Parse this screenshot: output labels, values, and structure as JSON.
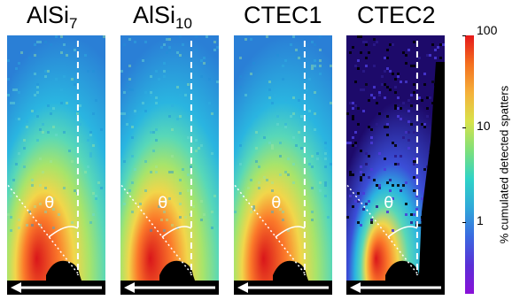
{
  "panels": [
    {
      "label_main": "AlSi",
      "label_sub": "7",
      "angle_label": "θ",
      "sparse": false
    },
    {
      "label_main": "AlSi",
      "label_sub": "10",
      "angle_label": "θ",
      "sparse": false
    },
    {
      "label_main": "CTEC1",
      "label_sub": "",
      "angle_label": "θ",
      "sparse": false
    },
    {
      "label_main": "CTEC2",
      "label_sub": "",
      "angle_label": "θ",
      "sparse": true
    }
  ],
  "colorbar": {
    "label": "% cumulated detected spatters",
    "ticks": [
      "100",
      "10",
      "1"
    ],
    "scale": "log",
    "colors": [
      "#e5181a",
      "#f4701f",
      "#f5b13a",
      "#d8e24a",
      "#7fe07a",
      "#2fd3c7",
      "#30a8d9",
      "#3a6ae0",
      "#5a2fd6",
      "#8a10d8"
    ]
  },
  "colors": {
    "hot": "#d9161a",
    "warm": "#fb7a2a",
    "mid": "#f2d64a",
    "cool": "#58d8b8",
    "cold": "#2ab5e0",
    "melt_pool": "#000000",
    "arrow": "#ffffff"
  }
}
